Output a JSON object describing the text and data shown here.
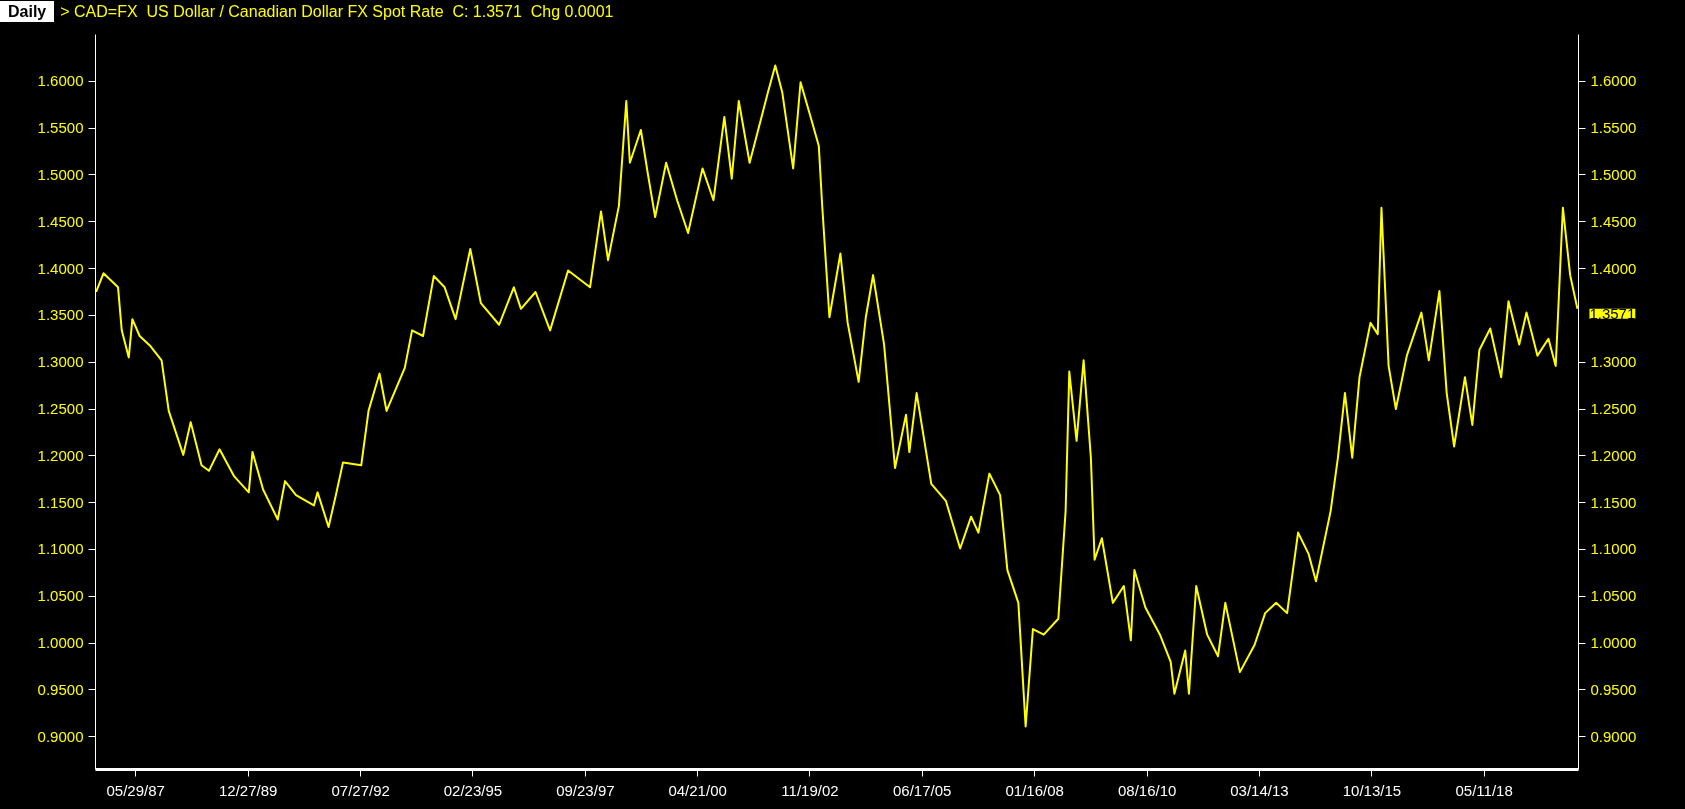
{
  "chart_data": {
    "type": "line",
    "title": "> CAD=FX  US Dollar / Canadian Dollar FX Spot Rate  C: 1.3571  Chg 0.0001",
    "annotations": [
      "Daily",
      {
        "text": "1.3571",
        "x": "2020-07",
        "y": 1.3571
      }
    ],
    "x": [
      "1986-07",
      "1986-09",
      "1987-01",
      "1987-02",
      "1987-04",
      "1987-05",
      "1987-07",
      "1987-10",
      "1988-01",
      "1988-03",
      "1988-07",
      "1988-09",
      "1988-12",
      "1989-02",
      "1989-05",
      "1989-09",
      "1990-01",
      "1990-02",
      "1990-05",
      "1990-09",
      "1990-11",
      "1991-02",
      "1991-07",
      "1991-08",
      "1991-11",
      "1992-01",
      "1992-03",
      "1992-08",
      "1992-10",
      "1993-01",
      "1993-03",
      "1993-08",
      "1993-10",
      "1994-01",
      "1994-04",
      "1994-07",
      "1994-10",
      "1995-02",
      "1995-05",
      "1995-10",
      "1996-02",
      "1996-04",
      "1996-08",
      "1996-12",
      "1997-05",
      "1997-11",
      "1998-02",
      "1998-04",
      "1998-07",
      "1998-09",
      "1998-10",
      "1999-01",
      "1999-03",
      "1999-05",
      "1999-08",
      "1999-11",
      "2000-02",
      "2000-06",
      "2000-09",
      "2000-12",
      "2001-02",
      "2001-04",
      "2001-07",
      "2001-12",
      "2002-02",
      "2002-04",
      "2002-07",
      "2002-09",
      "2002-12",
      "2003-02",
      "2003-03",
      "2003-05",
      "2003-08",
      "2003-10",
      "2004-01",
      "2004-03",
      "2004-05",
      "2004-08",
      "2004-11",
      "2005-02",
      "2005-03",
      "2005-05",
      "2005-09",
      "2006-01",
      "2006-05",
      "2006-08",
      "2006-10",
      "2007-01",
      "2007-04",
      "2007-06",
      "2007-09",
      "2007-11",
      "2008-01",
      "2008-04",
      "2008-08",
      "2008-10",
      "2008-11",
      "2009-01",
      "2009-03",
      "2009-05",
      "2009-06",
      "2009-08",
      "2009-11",
      "2010-02",
      "2010-04",
      "2010-05",
      "2010-08",
      "2010-12",
      "2011-03",
      "2011-04",
      "2011-07",
      "2011-08",
      "2011-10",
      "2012-01",
      "2012-04",
      "2012-06",
      "2012-10",
      "2013-02",
      "2013-05",
      "2013-08",
      "2013-11",
      "2014-02",
      "2014-05",
      "2014-07",
      "2014-11",
      "2015-01",
      "2015-03",
      "2015-05",
      "2015-07",
      "2015-10",
      "2015-12",
      "2016-01",
      "2016-03",
      "2016-05",
      "2016-08",
      "2016-12",
      "2017-02",
      "2017-05",
      "2017-07",
      "2017-09",
      "2017-12",
      "2018-02",
      "2018-04",
      "2018-07",
      "2018-10",
      "2018-12",
      "2019-03",
      "2019-05",
      "2019-08",
      "2019-11",
      "2020-01",
      "2020-03",
      "2020-05",
      "2020-07"
    ],
    "series": [
      {
        "color": "#ffff00",
        "values": [
          1.375,
          1.395,
          1.38,
          1.334,
          1.305,
          1.346,
          1.328,
          1.317,
          1.302,
          1.248,
          1.201,
          1.236,
          1.19,
          1.184,
          1.207,
          1.178,
          1.161,
          1.204,
          1.164,
          1.132,
          1.173,
          1.158,
          1.147,
          1.161,
          1.124,
          1.158,
          1.193,
          1.19,
          1.248,
          1.288,
          1.248,
          1.294,
          1.334,
          1.328,
          1.392,
          1.38,
          1.346,
          1.421,
          1.363,
          1.34,
          1.38,
          1.357,
          1.375,
          1.334,
          1.398,
          1.38,
          1.461,
          1.409,
          1.467,
          1.579,
          1.513,
          1.548,
          1.501,
          1.455,
          1.513,
          1.473,
          1.438,
          1.507,
          1.473,
          1.562,
          1.496,
          1.579,
          1.513,
          1.588,
          1.617,
          1.588,
          1.507,
          1.599,
          1.559,
          1.531,
          1.468,
          1.348,
          1.416,
          1.342,
          1.279,
          1.348,
          1.393,
          1.319,
          1.187,
          1.244,
          1.204,
          1.267,
          1.17,
          1.152,
          1.101,
          1.135,
          1.118,
          1.181,
          1.158,
          1.078,
          1.043,
          0.911,
          1.015,
          1.009,
          1.026,
          1.141,
          1.29,
          1.216,
          1.302,
          1.198,
          1.089,
          1.112,
          1.043,
          1.061,
          1.003,
          1.078,
          1.038,
          1.009,
          0.98,
          0.946,
          0.992,
          0.946,
          1.061,
          1.009,
          0.986,
          1.043,
          0.969,
          0.998,
          1.032,
          1.043,
          1.032,
          1.118,
          1.095,
          1.066,
          1.141,
          1.198,
          1.267,
          1.198,
          1.284,
          1.342,
          1.33,
          1.465,
          1.296,
          1.25,
          1.307,
          1.353,
          1.302,
          1.376,
          1.267,
          1.21,
          1.284,
          1.233,
          1.313,
          1.336,
          1.284,
          1.365,
          1.319,
          1.353,
          1.307,
          1.325,
          1.296,
          1.465,
          1.393,
          1.3571
        ]
      }
    ],
    "xlim": [
      "1986-06-26",
      "2020-07-10"
    ],
    "xticks": [
      {
        "value": "1987-05-29",
        "label": "05/29/87"
      },
      {
        "value": "1989-12-27",
        "label": "12/27/89"
      },
      {
        "value": "1992-07-27",
        "label": "07/27/92"
      },
      {
        "value": "1995-02-23",
        "label": "02/23/95"
      },
      {
        "value": "1997-09-23",
        "label": "09/23/97"
      },
      {
        "value": "2000-04-21",
        "label": "04/21/00"
      },
      {
        "value": "2002-11-19",
        "label": "11/19/02"
      },
      {
        "value": "2005-06-17",
        "label": "06/17/05"
      },
      {
        "value": "2008-01-16",
        "label": "01/16/08"
      },
      {
        "value": "2010-08-16",
        "label": "08/16/10"
      },
      {
        "value": "2013-03-14",
        "label": "03/14/13"
      },
      {
        "value": "2015-10-13",
        "label": "10/13/15"
      },
      {
        "value": "2018-05-11",
        "label": "05/11/18"
      }
    ],
    "ylim": [
      0.865,
      1.65
    ],
    "yticks": [
      {
        "value": 0.9,
        "label": "0.9000"
      },
      {
        "value": 0.95,
        "label": "0.9500"
      },
      {
        "value": 1.0,
        "label": "1.0000"
      },
      {
        "value": 1.05,
        "label": "1.0500"
      },
      {
        "value": 1.1,
        "label": "1.1000"
      },
      {
        "value": 1.15,
        "label": "1.1500"
      },
      {
        "value": 1.2,
        "label": "1.2000"
      },
      {
        "value": 1.25,
        "label": "1.2500"
      },
      {
        "value": 1.3,
        "label": "1.3000"
      },
      {
        "value": 1.35,
        "label": "1.3500"
      },
      {
        "value": 1.4,
        "label": "1.4000"
      },
      {
        "value": 1.45,
        "label": "1.4500"
      },
      {
        "value": 1.5,
        "label": "1.5000"
      },
      {
        "value": 1.55,
        "label": "1.5500"
      },
      {
        "value": 1.6,
        "label": "1.6000"
      }
    ],
    "y2lim": [
      0.865,
      1.65
    ],
    "y2ticks": [
      {
        "value": 0.9,
        "label": "0.9000"
      },
      {
        "value": 0.95,
        "label": "0.9500"
      },
      {
        "value": 1.0,
        "label": "1.0000"
      },
      {
        "value": 1.05,
        "label": "1.0500"
      },
      {
        "value": 1.1,
        "label": "1.1000"
      },
      {
        "value": 1.15,
        "label": "1.1500"
      },
      {
        "value": 1.2,
        "label": "1.2000"
      },
      {
        "value": 1.25,
        "label": "1.2500"
      },
      {
        "value": 1.3,
        "label": "1.3000"
      },
      {
        "value": 1.4,
        "label": "1.4000"
      },
      {
        "value": 1.45,
        "label": "1.4500"
      },
      {
        "value": 1.5,
        "label": "1.5000"
      },
      {
        "value": 1.55,
        "label": "1.5500"
      },
      {
        "value": 1.6,
        "label": "1.6000"
      }
    ],
    "grid": false,
    "line_style": "solid",
    "marker": "none"
  }
}
